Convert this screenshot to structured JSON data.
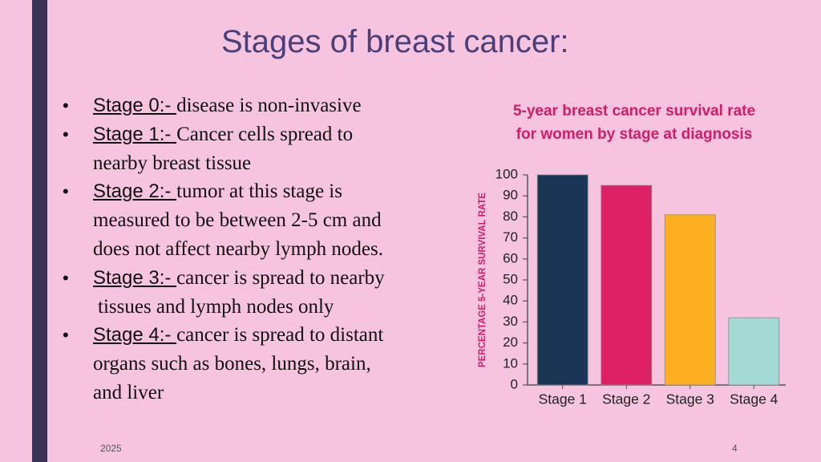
{
  "slide": {
    "title": "Stages of breast cancer:",
    "bullets": [
      {
        "label": "Stage 0:- ",
        "lines": [
          "disease is non-invasive"
        ]
      },
      {
        "label": "Stage 1:- ",
        "lines": [
          "Cancer cells spread to",
          "nearby breast tissue"
        ]
      },
      {
        "label": "Stage 2:- ",
        "lines": [
          "tumor at this stage is",
          "measured to be between 2-5 cm and",
          "does not affect nearby lymph nodes."
        ]
      },
      {
        "label": "Stage 3:- ",
        "lines": [
          "cancer is spread to nearby",
          "tissues and lymph nodes only"
        ]
      },
      {
        "label": "Stage 4:- ",
        "lines": [
          "cancer is spread to distant",
          "organs such as bones, lungs, brain,",
          "and liver"
        ]
      }
    ],
    "footer_left": "2025",
    "footer_right": "4"
  },
  "chart_data": {
    "type": "bar",
    "title_lines": [
      "5-year breast cancer survival rate",
      "for women by stage at diagnosis"
    ],
    "ylabel": "PERCENTAGE 5-YEAR SURVIVAL RATE",
    "xlabel": "",
    "categories": [
      "Stage 1",
      "Stage 2",
      "Stage 3",
      "Stage 4"
    ],
    "values": [
      100,
      95,
      81,
      32
    ],
    "colors": [
      "#1b3557",
      "#de2165",
      "#fbb021",
      "#a3dad6"
    ],
    "ylim": [
      0,
      100
    ],
    "yticks": [
      0,
      10,
      20,
      30,
      40,
      50,
      60,
      70,
      80,
      90,
      100
    ],
    "grid": false,
    "legend": "none"
  }
}
